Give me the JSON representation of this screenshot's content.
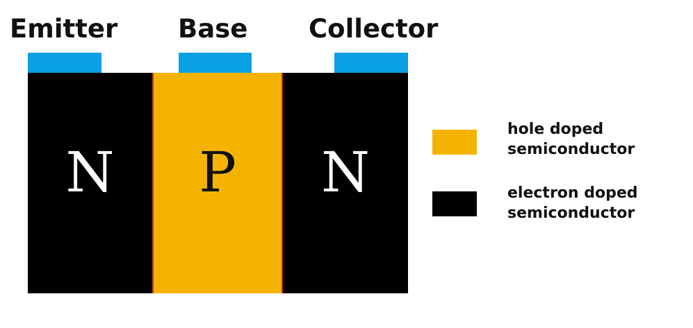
{
  "terminals": {
    "emitter": "Emitter",
    "base": "Base",
    "collector": "Collector"
  },
  "regions": {
    "emitter_letter": "N",
    "base_letter": "P",
    "collector_letter": "N"
  },
  "legend": {
    "hole": {
      "line1": "hole doped",
      "line2": "semiconductor",
      "color": "#f5b301"
    },
    "electron": {
      "line1": "electron doped",
      "line2": "semiconductor",
      "color": "#000000"
    }
  },
  "colors": {
    "contact": "#0aa0e4",
    "n_region": "#000000",
    "p_region": "#f5b301",
    "p_region_border": "#c0392b"
  }
}
